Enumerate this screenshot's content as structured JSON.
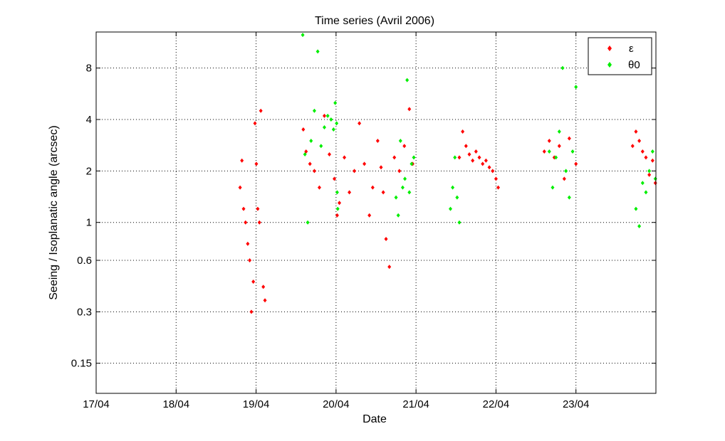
{
  "chart_data": {
    "type": "scatter",
    "title": "Time series (Avril 2006)",
    "xlabel": "Date",
    "ylabel": "Seeing / Isoplanatic angle (arcsec)",
    "x_ticks": [
      "17/04",
      "18/04",
      "19/04",
      "20/04",
      "21/04",
      "22/04",
      "23/04"
    ],
    "xlim": [
      "2006-04-17T00:00",
      "2006-04-24T00:00"
    ],
    "y_scale": "log",
    "y_ticks": [
      0.15,
      0.3,
      0.6,
      1,
      2,
      4,
      8
    ],
    "ylim": [
      0.1,
      13
    ],
    "grid": true,
    "legend_position": "top-right",
    "series": [
      {
        "name": "ε",
        "color": "#ff0000",
        "marker": "diamond",
        "x": [
          "2006-04-18T19:12",
          "2006-04-18T19:45",
          "2006-04-18T20:15",
          "2006-04-18T20:50",
          "2006-04-18T21:30",
          "2006-04-18T22:05",
          "2006-04-18T22:35",
          "2006-04-18T23:10",
          "2006-04-18T23:40",
          "2006-04-19T00:05",
          "2006-04-19T00:30",
          "2006-04-19T01:00",
          "2006-04-19T01:25",
          "2006-04-19T02:10",
          "2006-04-19T02:40",
          "2006-04-19T14:10",
          "2006-04-19T15:00",
          "2006-04-19T16:10",
          "2006-04-19T17:30",
          "2006-04-19T19:00",
          "2006-04-19T20:30",
          "2006-04-19T22:00",
          "2006-04-19T23:30",
          "2006-04-20T00:20",
          "2006-04-20T01:00",
          "2006-04-20T02:30",
          "2006-04-20T04:00",
          "2006-04-20T05:30",
          "2006-04-20T07:00",
          "2006-04-20T08:30",
          "2006-04-20T10:00",
          "2006-04-20T11:00",
          "2006-04-20T12:30",
          "2006-04-20T13:30",
          "2006-04-20T14:10",
          "2006-04-20T15:00",
          "2006-04-20T16:00",
          "2006-04-20T17:30",
          "2006-04-20T19:00",
          "2006-04-20T20:30",
          "2006-04-20T22:00",
          "2006-04-20T23:00",
          "2006-04-21T13:00",
          "2006-04-21T14:00",
          "2006-04-21T15:00",
          "2006-04-21T16:00",
          "2006-04-21T17:00",
          "2006-04-21T18:00",
          "2006-04-21T19:00",
          "2006-04-21T20:00",
          "2006-04-21T21:00",
          "2006-04-21T22:00",
          "2006-04-21T23:00",
          "2006-04-22T00:00",
          "2006-04-22T00:40",
          "2006-04-22T14:30",
          "2006-04-22T16:00",
          "2006-04-22T17:30",
          "2006-04-22T19:00",
          "2006-04-22T20:30",
          "2006-04-22T22:00",
          "2006-04-23T00:00",
          "2006-04-23T17:00",
          "2006-04-23T18:00",
          "2006-04-23T19:00",
          "2006-04-23T20:00",
          "2006-04-23T21:00",
          "2006-04-23T22:00",
          "2006-04-23T23:00",
          "2006-04-23T23:50"
        ],
        "y": [
          1.6,
          2.3,
          1.2,
          1.0,
          0.75,
          0.6,
          0.3,
          0.45,
          3.8,
          2.2,
          1.2,
          1.0,
          4.5,
          0.42,
          0.35,
          3.5,
          2.6,
          2.2,
          2.0,
          1.6,
          4.2,
          2.5,
          1.8,
          1.1,
          1.3,
          2.4,
          1.5,
          2.0,
          3.8,
          2.2,
          1.1,
          1.6,
          3.0,
          2.1,
          1.5,
          0.8,
          0.55,
          2.4,
          2.0,
          2.8,
          4.6,
          2.2,
          2.4,
          3.4,
          2.8,
          2.5,
          2.3,
          2.6,
          2.4,
          2.2,
          2.3,
          2.1,
          2.0,
          1.8,
          1.6,
          2.6,
          3.0,
          2.4,
          2.8,
          1.8,
          3.1,
          2.2,
          2.8,
          3.4,
          3.0,
          2.6,
          2.4,
          1.9,
          2.3,
          1.7
        ]
      },
      {
        "name": "θ0",
        "color": "#00ee00",
        "marker": "diamond",
        "x": [
          "2006-04-19T14:00",
          "2006-04-19T14:40",
          "2006-04-19T15:30",
          "2006-04-19T16:30",
          "2006-04-19T17:30",
          "2006-04-19T18:30",
          "2006-04-19T19:30",
          "2006-04-19T20:30",
          "2006-04-19T21:30",
          "2006-04-19T22:30",
          "2006-04-19T23:15",
          "2006-04-19T23:45",
          "2006-04-20T00:10",
          "2006-04-20T00:20",
          "2006-04-20T00:30",
          "2006-04-20T18:00",
          "2006-04-20T18:40",
          "2006-04-20T19:20",
          "2006-04-20T20:00",
          "2006-04-20T20:40",
          "2006-04-20T21:20",
          "2006-04-20T22:00",
          "2006-04-20T22:40",
          "2006-04-20T23:20",
          "2006-04-21T10:20",
          "2006-04-21T11:00",
          "2006-04-21T11:40",
          "2006-04-21T12:20",
          "2006-04-21T13:00",
          "2006-04-22T16:00",
          "2006-04-22T17:00",
          "2006-04-22T18:00",
          "2006-04-22T19:00",
          "2006-04-22T20:00",
          "2006-04-22T21:00",
          "2006-04-22T22:00",
          "2006-04-22T23:00",
          "2006-04-23T00:00",
          "2006-04-23T18:00",
          "2006-04-23T19:00",
          "2006-04-23T20:00",
          "2006-04-23T21:00",
          "2006-04-23T22:00",
          "2006-04-23T23:00",
          "2006-04-23T23:50"
        ],
        "y": [
          12.5,
          2.5,
          1.0,
          3.0,
          4.5,
          10.0,
          2.8,
          3.6,
          4.2,
          4.0,
          3.5,
          5.0,
          3.8,
          1.5,
          1.2,
          1.4,
          1.1,
          3.0,
          1.6,
          1.8,
          6.8,
          1.5,
          2.2,
          2.4,
          1.2,
          1.6,
          2.4,
          1.4,
          1.0,
          2.6,
          1.6,
          2.4,
          3.4,
          8.0,
          2.0,
          1.4,
          2.6,
          6.2,
          1.2,
          0.95,
          1.7,
          1.5,
          2.0,
          2.6,
          1.8
        ]
      }
    ]
  }
}
